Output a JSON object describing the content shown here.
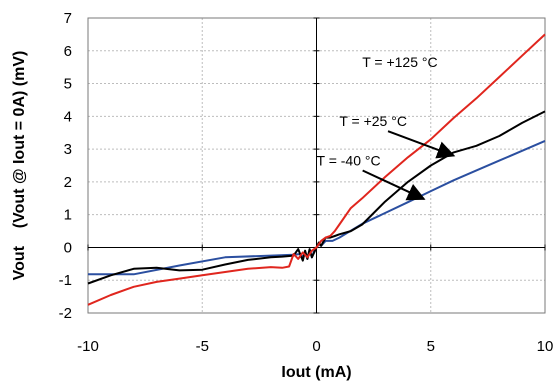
{
  "chart_data": {
    "type": "line",
    "xlabel": "Iout (mA)",
    "ylabel": "Vout    (Vout @ Iout = 0A) (mV)",
    "xlim": [
      -10,
      10
    ],
    "ylim": [
      -2,
      7
    ],
    "xticks": [
      -10,
      -5,
      0,
      5,
      10
    ],
    "yticks": [
      -2,
      -1,
      0,
      1,
      2,
      3,
      4,
      5,
      6,
      7
    ],
    "grid": true,
    "series": [
      {
        "name": "T = -40 °C",
        "color": "#2b4fa0",
        "x": [
          -10,
          -8,
          -6,
          -4,
          -2,
          -1,
          -0.7,
          -0.6,
          -0.5,
          -0.4,
          -0.3,
          -0.2,
          -0.1,
          0,
          0.1,
          0.2,
          0.4,
          0.7,
          1,
          2,
          3,
          4,
          5,
          6,
          7,
          8,
          9,
          10
        ],
        "y": [
          -0.82,
          -0.82,
          -0.55,
          -0.3,
          -0.25,
          -0.22,
          -0.2,
          -0.3,
          -0.15,
          -0.35,
          -0.1,
          -0.3,
          -0.1,
          0,
          0.1,
          0.05,
          0.2,
          0.2,
          0.3,
          0.72,
          1.05,
          1.38,
          1.72,
          2.05,
          2.35,
          2.65,
          2.95,
          3.25
        ]
      },
      {
        "name": "T = +25 °C",
        "color": "#000000",
        "x": [
          -10,
          -9,
          -8,
          -7,
          -6,
          -5,
          -4,
          -3,
          -2,
          -1.5,
          -1,
          -0.8,
          -0.6,
          -0.5,
          -0.4,
          -0.3,
          -0.2,
          -0.1,
          0,
          0.1,
          0.2,
          0.4,
          0.6,
          0.8,
          1,
          1.5,
          2,
          3,
          4,
          5,
          6,
          7,
          8,
          9,
          10
        ],
        "y": [
          -1.1,
          -0.85,
          -0.65,
          -0.62,
          -0.7,
          -0.68,
          -0.52,
          -0.38,
          -0.3,
          -0.28,
          -0.25,
          -0.05,
          -0.4,
          -0.1,
          -0.35,
          -0.05,
          -0.3,
          -0.15,
          0,
          0.15,
          0.05,
          0.3,
          0.3,
          0.35,
          0.4,
          0.5,
          0.7,
          1.4,
          2.0,
          2.5,
          2.9,
          3.1,
          3.4,
          3.8,
          4.15
        ]
      },
      {
        "name": "T = +125 °C",
        "color": "#e0261e",
        "x": [
          -10,
          -9,
          -8,
          -7,
          -6,
          -5,
          -4,
          -3,
          -2,
          -1.5,
          -1.2,
          -1,
          -0.8,
          -0.6,
          -0.4,
          -0.2,
          0,
          0.2,
          0.4,
          0.6,
          0.8,
          1,
          1.5,
          2,
          3,
          4,
          5,
          6,
          7,
          8,
          9,
          10
        ],
        "y": [
          -1.75,
          -1.45,
          -1.2,
          -1.05,
          -0.95,
          -0.85,
          -0.75,
          -0.65,
          -0.6,
          -0.62,
          -0.58,
          -0.2,
          -0.35,
          -0.15,
          -0.3,
          -0.1,
          0,
          0.2,
          0.3,
          0.35,
          0.5,
          0.7,
          1.2,
          1.5,
          2.15,
          2.75,
          3.3,
          3.95,
          4.55,
          5.2,
          5.85,
          6.5
        ]
      }
    ],
    "annotations": [
      {
        "text": "T = +125 °C",
        "x": 2.0,
        "y": 5.5
      },
      {
        "text": "T = +25 °C",
        "x": 1.0,
        "y": 3.7,
        "arrow_to": [
          6.0,
          2.8
        ]
      },
      {
        "text": "T = -40 °C",
        "x": 0.0,
        "y": 2.5,
        "arrow_to": [
          4.7,
          1.48
        ]
      }
    ]
  }
}
